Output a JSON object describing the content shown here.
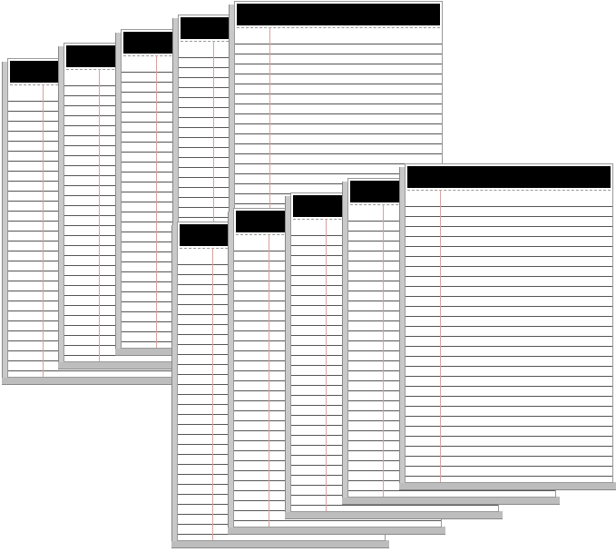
{
  "image": {
    "subject": "legal-pads",
    "groups": [
      {
        "pad_count": 5
      },
      {
        "pad_count": 5
      }
    ],
    "colors": {
      "header": "#000000",
      "paper": "#ffffff",
      "rule_lines": "#555555",
      "margin_line": "#d9a0a0",
      "pad_edge": "#c9c9c9"
    }
  }
}
